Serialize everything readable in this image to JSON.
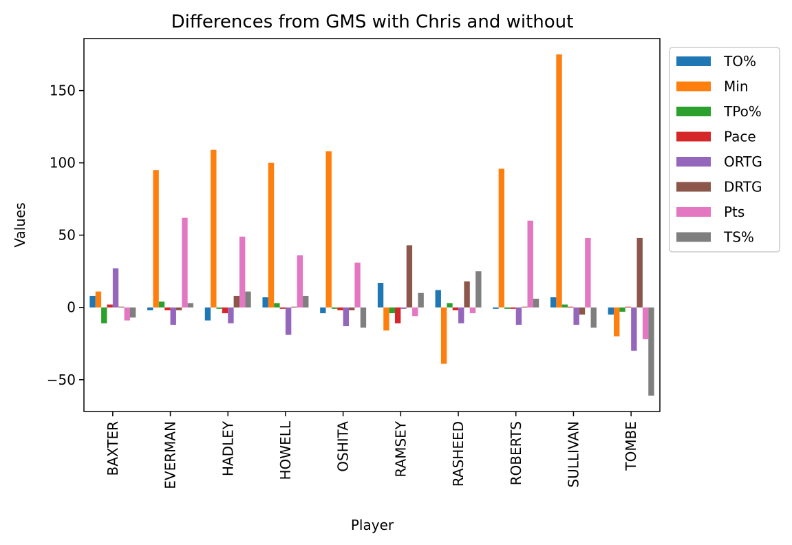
{
  "chart_data": {
    "type": "bar",
    "title": "Differences from GMS with Chris and without",
    "xlabel": "Player",
    "ylabel": "Values",
    "ylim": [
      -72,
      186
    ],
    "yticks": [
      -50,
      0,
      50,
      100,
      150
    ],
    "ytick_labels": [
      "−50",
      "0",
      "50",
      "100",
      "150"
    ],
    "grid": false,
    "legend_position": "outside-top-right",
    "categories": [
      "BAXTER",
      "EVERMAN",
      "HADLEY",
      "HOWELL",
      "OSHITA",
      "RAMSEY",
      "RASHEED",
      "ROBERTS",
      "SULLIVAN",
      "TOMBE"
    ],
    "series": [
      {
        "name": "TO%",
        "color": "#1f77b4",
        "values": [
          8,
          -2,
          -9,
          7,
          -4,
          17,
          12,
          -1,
          7,
          -5
        ]
      },
      {
        "name": "Min",
        "color": "#ff7f0e",
        "values": [
          11,
          95,
          109,
          100,
          108,
          -16,
          -39,
          96,
          175,
          -20
        ]
      },
      {
        "name": "TPo%",
        "color": "#2ca02c",
        "values": [
          -11,
          4,
          -1,
          3,
          -1,
          -4,
          3,
          -1,
          2,
          -3
        ]
      },
      {
        "name": "Pace",
        "color": "#d62728",
        "values": [
          2,
          -2,
          -4,
          -1,
          -2,
          -11,
          -2,
          -1,
          0.5,
          0.5
        ]
      },
      {
        "name": "ORTG",
        "color": "#9467bd",
        "values": [
          27,
          -12,
          -11,
          -19,
          -13,
          -1,
          -11,
          -12,
          -12,
          -30
        ]
      },
      {
        "name": "DRTG",
        "color": "#8c564b",
        "values": [
          0.5,
          -2,
          8,
          0.5,
          -2,
          43,
          18,
          0.5,
          -5,
          48
        ]
      },
      {
        "name": "Pts",
        "color": "#e377c2",
        "values": [
          -9,
          62,
          49,
          36,
          31,
          -6,
          -4,
          60,
          48,
          -22
        ]
      },
      {
        "name": "TS%",
        "color": "#7f7f7f",
        "values": [
          -7,
          3,
          11,
          8,
          -14,
          10,
          25,
          6,
          -14,
          -61
        ]
      }
    ]
  }
}
